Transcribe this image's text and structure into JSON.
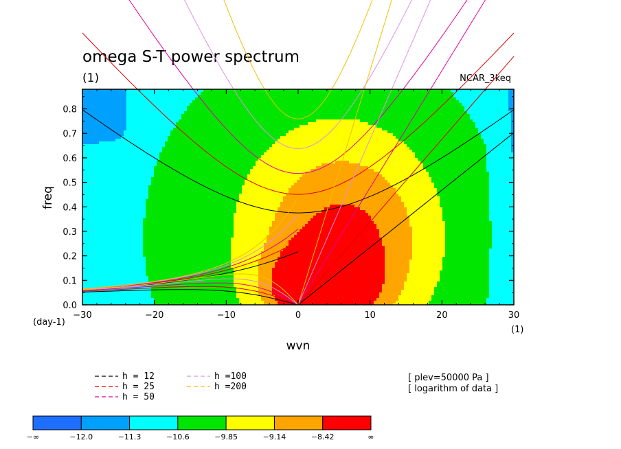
{
  "chart_data": {
    "type": "heatmap",
    "title": "omega S-T power spectrum",
    "units_label": "(1)",
    "case_label": "NCAR_3keq",
    "xlabel": "wvn",
    "ylabel": "freq",
    "x_unit_label": "(1)",
    "y_unit_label": "(day-1)",
    "xlim": [
      -30,
      30
    ],
    "ylim": [
      0,
      0.88
    ],
    "xticks": [
      "−30",
      "−20",
      "−10",
      "0",
      "10",
      "20",
      "30"
    ],
    "yticks": [
      "0.0",
      "0.1",
      "0.2",
      "0.3",
      "0.4",
      "0.5",
      "0.6",
      "0.7",
      "0.8"
    ],
    "contour_levels": [
      -12.0,
      -11.3,
      -10.6,
      -9.85,
      -9.14,
      -8.42
    ],
    "level_colors": [
      "#1e6fff",
      "#00a0ff",
      "#00ffff",
      "#00e600",
      "#ffff00",
      "#ffa500",
      "#ff0000"
    ],
    "colorbar_labels": [
      "−∞",
      "−12.0",
      "−11.3",
      "−10.6",
      "−9.85",
      "−9.14",
      "−8.42",
      "∞"
    ],
    "dispersion_curves": [
      {
        "name": "h = 12",
        "color": "#000000"
      },
      {
        "name": "h = 25",
        "color": "#e00000"
      },
      {
        "name": "h = 50",
        "color": "#e000a0"
      },
      {
        "name": "h =100",
        "color": "#e090e0"
      },
      {
        "name": "h =200",
        "color": "#f0c000"
      }
    ],
    "annotations": [
      "[ plev=50000 Pa ]",
      "[ logarithm of data ]"
    ]
  }
}
